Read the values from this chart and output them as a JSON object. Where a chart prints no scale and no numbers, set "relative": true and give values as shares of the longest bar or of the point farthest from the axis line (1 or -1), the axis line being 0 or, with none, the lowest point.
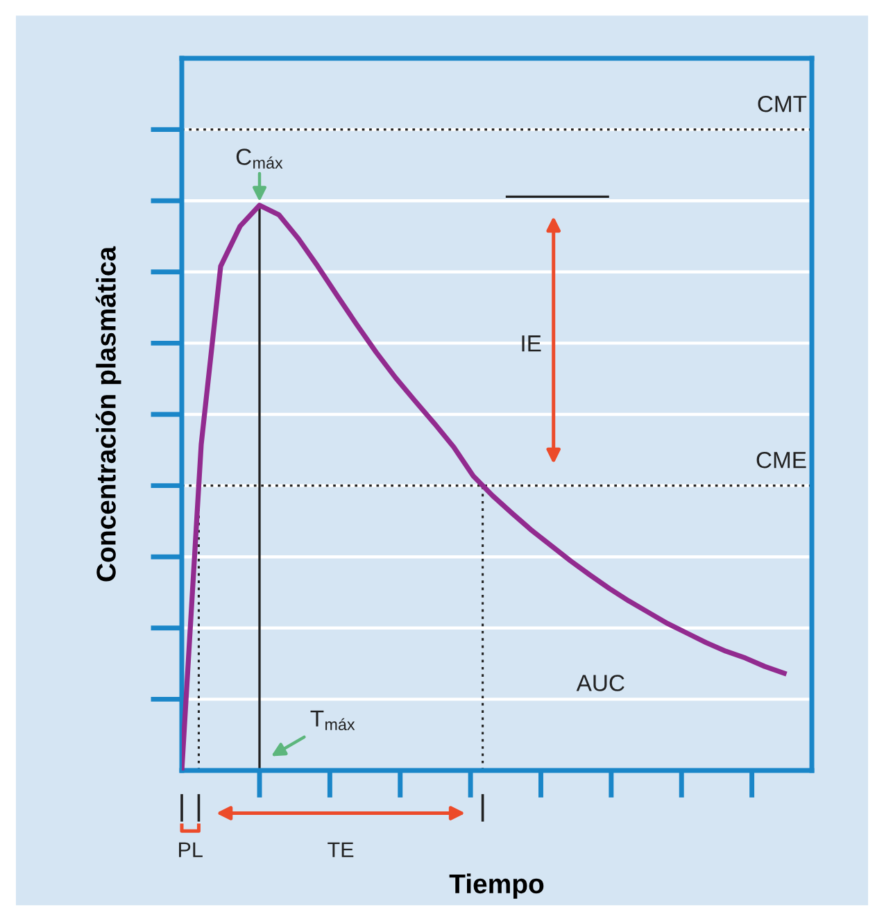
{
  "chart_data": {
    "type": "line",
    "relative": true,
    "xlabel": "Tiempo",
    "ylabel": "Concentración plasmática",
    "color": "#922b8f",
    "grid": "y",
    "categories": [
      null,
      null,
      null,
      null,
      null,
      null,
      null,
      null,
      null,
      null,
      null,
      null,
      null,
      null,
      null,
      null,
      null,
      null,
      null,
      null,
      null,
      null,
      null,
      null,
      null,
      null,
      null,
      null,
      null,
      null,
      null,
      null
    ],
    "values": [
      0,
      0.577,
      0.892,
      0.963,
      1,
      0.983,
      0.941,
      0.892,
      0.84,
      0.789,
      0.74,
      0.695,
      0.654,
      0.614,
      0.572,
      0.521,
      0.486,
      0.455,
      0.425,
      0.398,
      0.371,
      0.346,
      0.322,
      0.3,
      0.28,
      0.26,
      0.243,
      0.226,
      0.211,
      0.199,
      0.184,
      0.172
    ],
    "ref_lines": [
      {
        "axis": "y",
        "value": 1.134,
        "label": "CMT",
        "color": "#222222",
        "line_style": "dotted"
      },
      {
        "axis": "y",
        "value": 0.504,
        "label": "CME",
        "color": "#222222",
        "line_style": "dotted"
      }
    ],
    "annotations": [
      "C$_{máx}$",
      "T$_{máx}$",
      "IE",
      "TE",
      "PL",
      "AUC"
    ]
  }
}
